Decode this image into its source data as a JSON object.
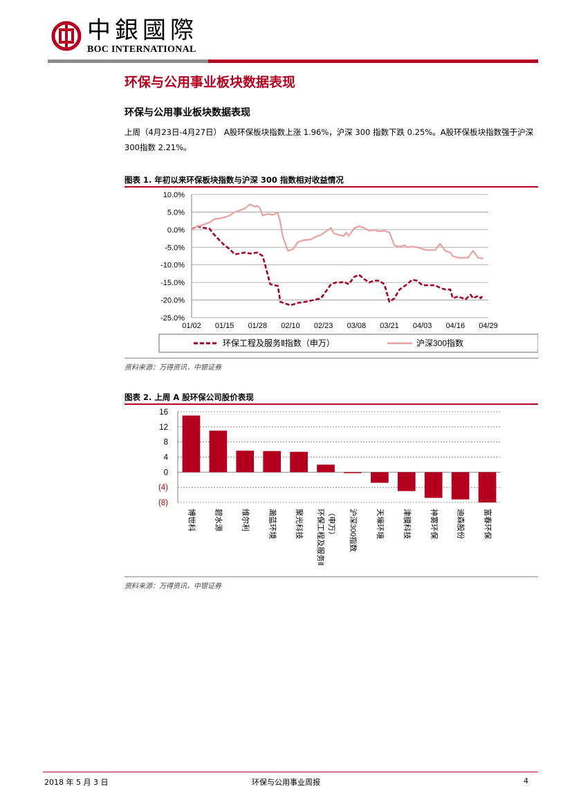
{
  "header": {
    "logo_cn": "中銀國際",
    "logo_en": "BOC INTERNATIONAL",
    "brand_red": "#b4001e"
  },
  "section": {
    "title": "环保与公用事业板块数据表现",
    "subtitle": "环保与公用事业板块数据表现",
    "summary": "上周（4月23日-4月27日） A股环保板块指数上涨 1.96%，沪深 300 指数下跌 0.25%。A股环保板块指数强于沪深300指数 2.21%。"
  },
  "figure1": {
    "title": "图表 1. 年初以来环保板块指数与沪深 300 指数相对收益情况",
    "source": "资料来源：万得资讯，中银证券"
  },
  "figure2": {
    "title": "图表 2. 上周 A 股环保公司股价表现",
    "source": "资料来源：万得资讯，中银证券"
  },
  "footer": {
    "date": "2018 年 5 月 3 日",
    "title": "环保与公用事业周报",
    "page": "4"
  },
  "chart_data": [
    {
      "type": "line",
      "title": "",
      "xlabel": "",
      "ylabel": "",
      "x_ticks": [
        "01/02",
        "01/15",
        "01/28",
        "02/10",
        "02/23",
        "03/08",
        "03/21",
        "04/03",
        "04/16",
        "04/29"
      ],
      "y_ticks": [
        "10.0%",
        "5.0%",
        "0.0%",
        "-5.0%",
        "-10.0%",
        "-15.0%",
        "-20.0%",
        "-25.0%"
      ],
      "ylim": [
        -25,
        10
      ],
      "xlim": [
        "01/02",
        "04/29"
      ],
      "grid": true,
      "legend_position": "bottom",
      "series": [
        {
          "name": "环保工程及服务Ⅱ指数（申万）",
          "color": "#a50021",
          "style": "dashed",
          "points": [
            [
              "01/02",
              0.0
            ],
            [
              "01/04",
              1.0
            ],
            [
              "01/07",
              0.5
            ],
            [
              "01/09",
              0.3
            ],
            [
              "01/11",
              -1.5
            ],
            [
              "01/13",
              -3.0
            ],
            [
              "01/15",
              -4.5
            ],
            [
              "01/17",
              -5.5
            ],
            [
              "01/19",
              -7.0
            ],
            [
              "01/21",
              -6.8
            ],
            [
              "01/23",
              -6.5
            ],
            [
              "01/25",
              -6.8
            ],
            [
              "01/28",
              -6.5
            ],
            [
              "01/30",
              -7.5
            ],
            [
              "01/31",
              -10.0
            ],
            [
              "02/02",
              -15.5
            ],
            [
              "02/05",
              -16.0
            ],
            [
              "02/06",
              -20.5
            ],
            [
              "02/08",
              -21.0
            ],
            [
              "02/10",
              -21.5
            ],
            [
              "02/13",
              -20.8
            ],
            [
              "02/16",
              -20.5
            ],
            [
              "02/19",
              -20.0
            ],
            [
              "02/22",
              -19.5
            ],
            [
              "02/24",
              -17.5
            ],
            [
              "02/26",
              -15.5
            ],
            [
              "02/28",
              -15.0
            ],
            [
              "03/02",
              -15.0
            ],
            [
              "03/03",
              -14.8
            ],
            [
              "03/05",
              -15.5
            ],
            [
              "03/07",
              -13.5
            ],
            [
              "03/09",
              -12.8
            ],
            [
              "03/11",
              -14.0
            ],
            [
              "03/13",
              -15.0
            ],
            [
              "03/15",
              -14.5
            ],
            [
              "03/17",
              -14.5
            ],
            [
              "03/19",
              -15.5
            ],
            [
              "03/21",
              -20.5
            ],
            [
              "03/23",
              -19.5
            ],
            [
              "03/25",
              -17.0
            ],
            [
              "03/28",
              -15.5
            ],
            [
              "03/30",
              -14.2
            ],
            [
              "04/01",
              -14.5
            ],
            [
              "04/03",
              -15.8
            ],
            [
              "04/05",
              -15.8
            ],
            [
              "04/08",
              -15.8
            ],
            [
              "04/10",
              -16.5
            ],
            [
              "04/12",
              -17.0
            ],
            [
              "04/14",
              -17.0
            ],
            [
              "04/15",
              -19.5
            ],
            [
              "04/17",
              -19.0
            ],
            [
              "04/19",
              -19.5
            ],
            [
              "04/20",
              -19.8
            ],
            [
              "04/22",
              -18.5
            ],
            [
              "04/23",
              -19.5
            ],
            [
              "04/25",
              -18.8
            ],
            [
              "04/26",
              -19.5
            ],
            [
              "04/27",
              -18.5
            ]
          ]
        },
        {
          "name": "沪深300指数",
          "color": "#eba0a0",
          "style": "solid",
          "points": [
            [
              "01/02",
              0.0
            ],
            [
              "01/04",
              0.8
            ],
            [
              "01/07",
              1.5
            ],
            [
              "01/09",
              2.0
            ],
            [
              "01/11",
              3.0
            ],
            [
              "01/13",
              3.2
            ],
            [
              "01/15",
              3.5
            ],
            [
              "01/17",
              4.0
            ],
            [
              "01/19",
              5.0
            ],
            [
              "01/21",
              5.5
            ],
            [
              "01/23",
              6.0
            ],
            [
              "01/25",
              7.2
            ],
            [
              "01/27",
              6.5
            ],
            [
              "01/28",
              6.8
            ],
            [
              "01/29",
              6.0
            ],
            [
              "01/30",
              4.0
            ],
            [
              "02/01",
              4.5
            ],
            [
              "02/03",
              4.2
            ],
            [
              "02/05",
              4.8
            ],
            [
              "02/06",
              2.0
            ],
            [
              "02/07",
              -2.0
            ],
            [
              "02/09",
              -6.0
            ],
            [
              "02/11",
              -5.5
            ],
            [
              "02/13",
              -3.5
            ],
            [
              "02/15",
              -3.0
            ],
            [
              "02/18",
              -2.8
            ],
            [
              "02/20",
              -2.0
            ],
            [
              "02/22",
              -1.5
            ],
            [
              "02/24",
              -0.5
            ],
            [
              "02/26",
              0.5
            ],
            [
              "02/27",
              -1.0
            ],
            [
              "03/01",
              -1.5
            ],
            [
              "03/03",
              -1.8
            ],
            [
              "03/04",
              -0.8
            ],
            [
              "03/05",
              -1.8
            ],
            [
              "03/07",
              0.3
            ],
            [
              "03/09",
              1.0
            ],
            [
              "03/11",
              0.5
            ],
            [
              "03/13",
              -0.3
            ],
            [
              "03/15",
              0.0
            ],
            [
              "03/17",
              -0.5
            ],
            [
              "03/19",
              -0.3
            ],
            [
              "03/21",
              -0.8
            ],
            [
              "03/23",
              -4.5
            ],
            [
              "03/25",
              -4.8
            ],
            [
              "03/27",
              -4.5
            ],
            [
              "03/28",
              -5.0
            ],
            [
              "03/30",
              -4.8
            ],
            [
              "04/01",
              -5.0
            ],
            [
              "04/03",
              -5.5
            ],
            [
              "04/05",
              -5.8
            ],
            [
              "04/08",
              -5.8
            ],
            [
              "04/10",
              -4.0
            ],
            [
              "04/12",
              -6.0
            ],
            [
              "04/14",
              -6.5
            ],
            [
              "04/15",
              -7.5
            ],
            [
              "04/17",
              -8.0
            ],
            [
              "04/19",
              -8.0
            ],
            [
              "04/21",
              -8.0
            ],
            [
              "04/23",
              -6.0
            ],
            [
              "04/25",
              -8.0
            ],
            [
              "04/27",
              -8.2
            ]
          ]
        }
      ]
    },
    {
      "type": "bar",
      "title": "",
      "xlabel": "",
      "ylabel": "",
      "y_ticks": [
        "16",
        "12",
        "8",
        "4",
        "0",
        "(4)",
        "(8)"
      ],
      "ylim": [
        -8,
        16
      ],
      "grid": true,
      "bar_color": "#b4001e",
      "negative_label_color": "#c00000",
      "categories": [
        "博世科",
        "碧水源",
        "维尔利",
        "瀚蓝环境",
        "聚光科技",
        "环保工程及服务Ⅱ（申万）",
        "沪深300指数",
        "天壕环境",
        "津膜科技",
        "神雾环保",
        "迪森股份",
        "富春环保"
      ],
      "values": [
        15.0,
        11.0,
        5.7,
        5.6,
        5.4,
        2.0,
        -0.25,
        -2.8,
        -5.0,
        -6.8,
        -7.2,
        -8.0
      ]
    }
  ]
}
